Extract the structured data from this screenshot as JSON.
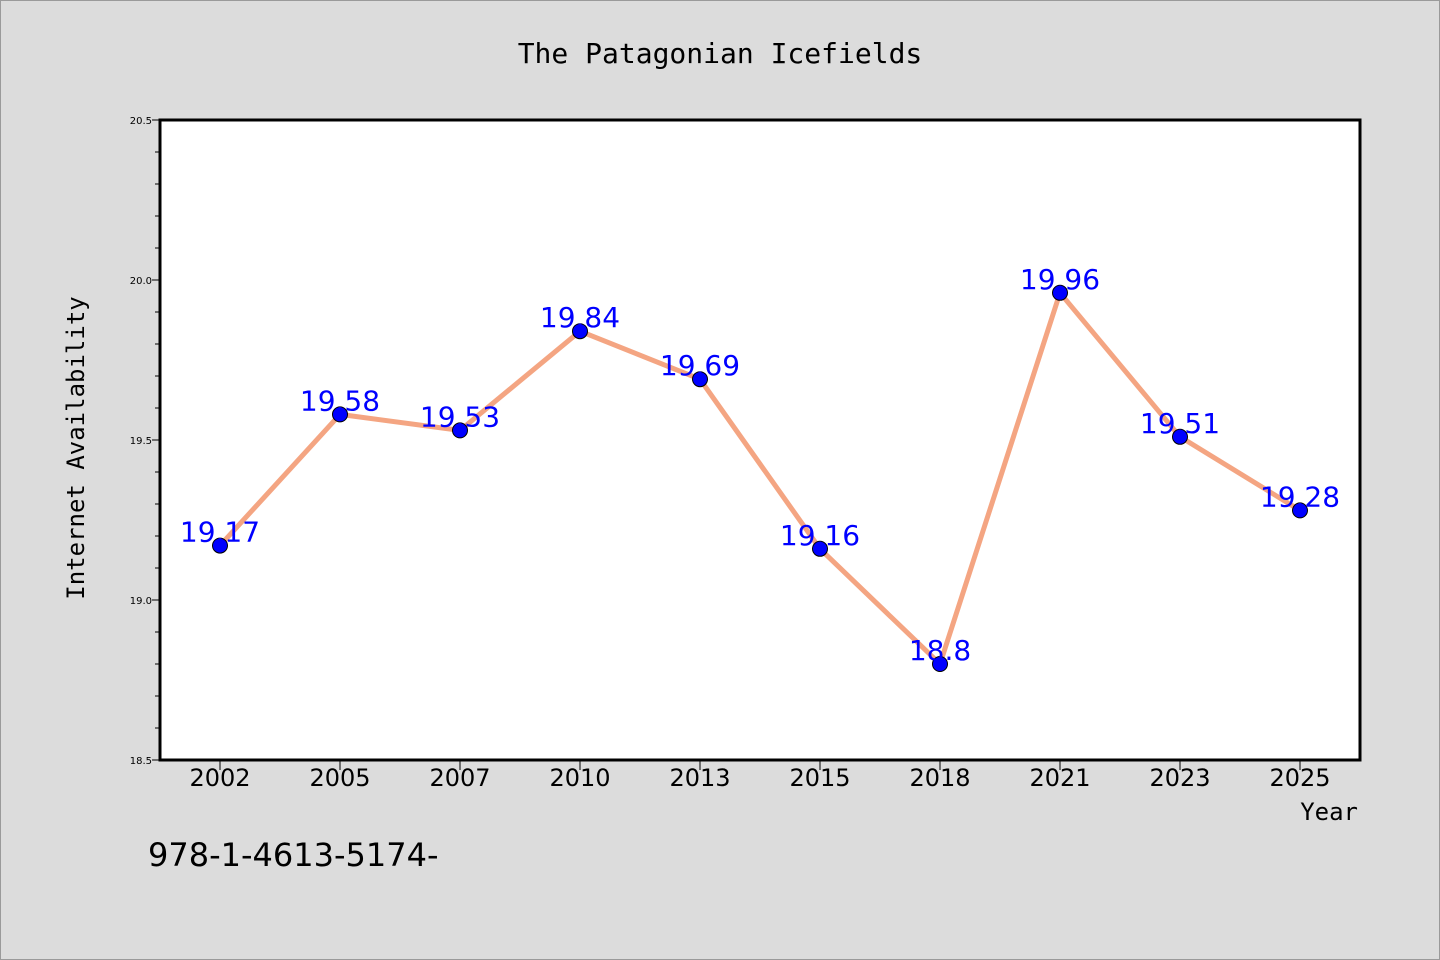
{
  "chart_data": {
    "type": "line",
    "title": "The Patagonian Icefields",
    "xlabel": "Year",
    "ylabel": "Internet Availability",
    "categories": [
      "2002",
      "2005",
      "2007",
      "2010",
      "2013",
      "2015",
      "2018",
      "2021",
      "2023",
      "2025"
    ],
    "series": [
      {
        "values": [
          19.17,
          19.58,
          19.53,
          19.84,
          19.69,
          19.16,
          18.8,
          19.96,
          19.51,
          19.28
        ]
      }
    ],
    "data_labels": [
      "19.17",
      "19.58",
      "19.53",
      "19.84",
      "19.69",
      "19.16",
      "18.8",
      "19.96",
      "19.51",
      "19.28"
    ],
    "ylim": [
      18.5,
      20.5
    ],
    "y_ticks": [
      "18.5",
      "19.0",
      "19.5",
      "20.0",
      "20.5"
    ],
    "grid": false,
    "legend": "none",
    "colors": {
      "line": "#f4a582",
      "marker": "#0000ff",
      "label": "#0000ff",
      "background": "#dcdcdc",
      "plot_area": "#ffffff"
    }
  },
  "footer_text": "978-1-4613-5174-"
}
